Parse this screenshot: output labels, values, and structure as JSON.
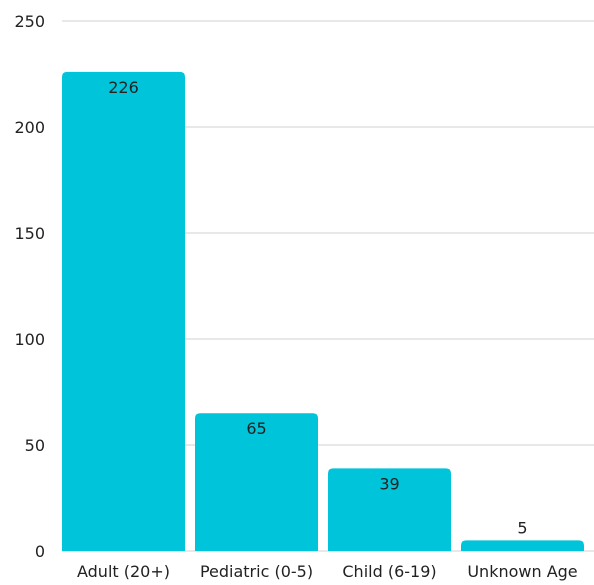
{
  "chart_data": {
    "type": "bar",
    "title": "",
    "xlabel": "",
    "ylabel": "",
    "categories": [
      "Adult (20+)",
      "Pediatric (0-5)",
      "Child (6-19)",
      "Unknown Age"
    ],
    "values": [
      226,
      65,
      39,
      5
    ],
    "ylim": [
      0,
      250
    ],
    "yticks": [
      0,
      50,
      100,
      150,
      200,
      250
    ],
    "grid": true,
    "legend": "none",
    "data_labels": true,
    "colors": {
      "bar": "#00C4D9",
      "grid": "#D0D0D0",
      "text": "#222222"
    }
  }
}
